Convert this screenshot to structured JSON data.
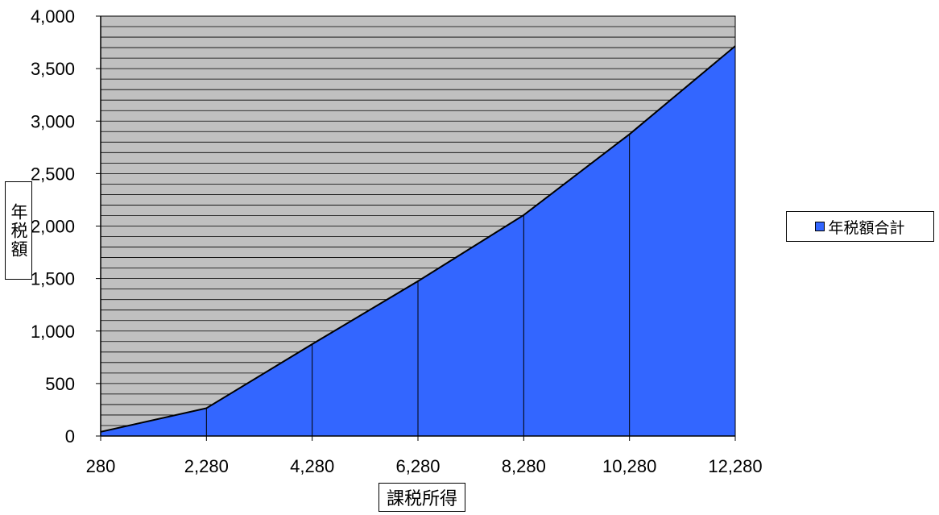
{
  "chart_data": {
    "type": "area",
    "x": [
      280,
      2280,
      4280,
      6280,
      8280,
      10280,
      12280
    ],
    "x_tick_labels": [
      "280",
      "2,280",
      "4,280",
      "6,280",
      "8,280",
      "10,280",
      "12,280"
    ],
    "y_ticks": [
      0,
      500,
      1000,
      1500,
      2000,
      2500,
      3000,
      3500,
      4000
    ],
    "y_tick_labels": [
      "0",
      "500",
      "1,000",
      "1,500",
      "2,000",
      "2,500",
      "3,000",
      "3,500",
      "4,000"
    ],
    "ylim": [
      0,
      4000
    ],
    "series": [
      {
        "name": "年税額合計",
        "values": [
          40,
          265,
          875,
          1475,
          2105,
          2875,
          3715
        ],
        "color": "#3366ff"
      }
    ],
    "xlabel": "課税所得",
    "ylabel": "年税額",
    "legend_label": "年税額合計",
    "legend_position": "right",
    "grid": true,
    "plot_background": "#c0c0c0",
    "grid_color": "#000000"
  }
}
